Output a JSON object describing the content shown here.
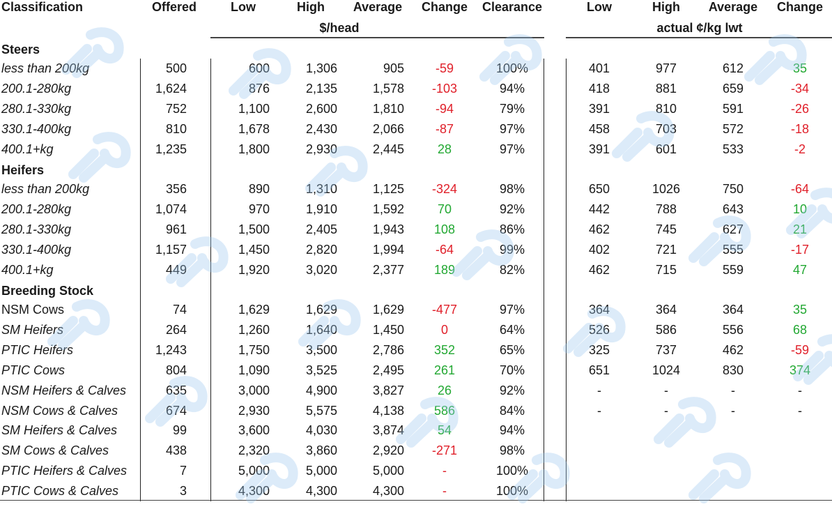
{
  "headers": {
    "classification": "Classification",
    "offered": "Offered",
    "low": "Low",
    "high": "High",
    "average": "Average",
    "change": "Change",
    "clearance": "Clearance",
    "unit_head": "$/head",
    "low2": "Low",
    "high2": "High",
    "average2": "Average",
    "change2": "Change",
    "unit_kg": "actual ¢/kg lwt"
  },
  "sections": [
    {
      "title": "Steers",
      "rows": [
        {
          "label": "less than 200kg",
          "italic": true,
          "offered": "500",
          "low": "600",
          "high": "1,306",
          "avg": "905",
          "change": "-59",
          "change_dir": "neg",
          "clearance": "100%",
          "low2": "401",
          "high2": "977",
          "avg2": "612",
          "change2": "35",
          "change2_dir": "pos"
        },
        {
          "label": "200.1-280kg",
          "italic": true,
          "offered": "1,624",
          "low": "876",
          "high": "2,135",
          "avg": "1,578",
          "change": "-103",
          "change_dir": "neg",
          "clearance": "94%",
          "low2": "418",
          "high2": "881",
          "avg2": "659",
          "change2": "-34",
          "change2_dir": "neg"
        },
        {
          "label": "280.1-330kg",
          "italic": true,
          "offered": "752",
          "low": "1,100",
          "high": "2,600",
          "avg": "1,810",
          "change": "-94",
          "change_dir": "neg",
          "clearance": "79%",
          "low2": "391",
          "high2": "810",
          "avg2": "591",
          "change2": "-26",
          "change2_dir": "neg"
        },
        {
          "label": "330.1-400kg",
          "italic": true,
          "offered": "810",
          "low": "1,678",
          "high": "2,430",
          "avg": "2,066",
          "change": "-87",
          "change_dir": "neg",
          "clearance": "97%",
          "low2": "458",
          "high2": "703",
          "avg2": "572",
          "change2": "-18",
          "change2_dir": "neg"
        },
        {
          "label": "400.1+kg",
          "italic": true,
          "offered": "1,235",
          "low": "1,800",
          "high": "2,930",
          "avg": "2,445",
          "change": "28",
          "change_dir": "pos",
          "clearance": "97%",
          "low2": "391",
          "high2": "601",
          "avg2": "533",
          "change2": "-2",
          "change2_dir": "neg"
        }
      ]
    },
    {
      "title": "Heifers",
      "rows": [
        {
          "label": "less than 200kg",
          "italic": true,
          "offered": "356",
          "low": "890",
          "high": "1,310",
          "avg": "1,125",
          "change": "-324",
          "change_dir": "neg",
          "clearance": "98%",
          "low2": "650",
          "high2": "1026",
          "avg2": "750",
          "change2": "-64",
          "change2_dir": "neg"
        },
        {
          "label": "200.1-280kg",
          "italic": true,
          "offered": "1,074",
          "low": "970",
          "high": "1,910",
          "avg": "1,592",
          "change": "70",
          "change_dir": "pos",
          "clearance": "92%",
          "low2": "442",
          "high2": "788",
          "avg2": "643",
          "change2": "10",
          "change2_dir": "pos"
        },
        {
          "label": "280.1-330kg",
          "italic": true,
          "offered": "961",
          "low": "1,500",
          "high": "2,405",
          "avg": "1,943",
          "change": "108",
          "change_dir": "pos",
          "clearance": "86%",
          "low2": "462",
          "high2": "745",
          "avg2": "627",
          "change2": "21",
          "change2_dir": "pos"
        },
        {
          "label": "330.1-400kg",
          "italic": true,
          "offered": "1,157",
          "low": "1,450",
          "high": "2,820",
          "avg": "1,994",
          "change": "-64",
          "change_dir": "neg",
          "clearance": "99%",
          "low2": "402",
          "high2": "721",
          "avg2": "555",
          "change2": "-17",
          "change2_dir": "neg"
        },
        {
          "label": "400.1+kg",
          "italic": true,
          "offered": "449",
          "low": "1,920",
          "high": "3,020",
          "avg": "2,377",
          "change": "189",
          "change_dir": "pos",
          "clearance": "82%",
          "low2": "462",
          "high2": "715",
          "avg2": "559",
          "change2": "47",
          "change2_dir": "pos"
        }
      ]
    },
    {
      "title": "Breeding Stock",
      "rows": [
        {
          "label": "NSM Cows",
          "italic": false,
          "offered": "74",
          "low": "1,629",
          "high": "1,629",
          "avg": "1,629",
          "change": "-477",
          "change_dir": "neg",
          "clearance": "97%",
          "low2": "364",
          "high2": "364",
          "avg2": "364",
          "change2": "35",
          "change2_dir": "pos"
        },
        {
          "label": "SM Heifers",
          "italic": true,
          "offered": "264",
          "low": "1,260",
          "high": "1,640",
          "avg": "1,450",
          "change": "0",
          "change_dir": "neg",
          "clearance": "64%",
          "low2": "526",
          "high2": "586",
          "avg2": "556",
          "change2": "68",
          "change2_dir": "pos"
        },
        {
          "label": "PTIC Heifers",
          "italic": true,
          "offered": "1,243",
          "low": "1,750",
          "high": "3,500",
          "avg": "2,786",
          "change": "352",
          "change_dir": "pos",
          "clearance": "65%",
          "low2": "325",
          "high2": "737",
          "avg2": "462",
          "change2": "-59",
          "change2_dir": "neg"
        },
        {
          "label": "PTIC Cows",
          "italic": true,
          "offered": "804",
          "low": "1,090",
          "high": "3,525",
          "avg": "2,495",
          "change": "261",
          "change_dir": "pos",
          "clearance": "70%",
          "low2": "651",
          "high2": "1024",
          "avg2": "830",
          "change2": "374",
          "change2_dir": "pos"
        },
        {
          "label": "NSM Heifers & Calves",
          "italic": true,
          "offered": "635",
          "low": "3,000",
          "high": "4,900",
          "avg": "3,827",
          "change": "26",
          "change_dir": "pos",
          "clearance": "92%",
          "low2": "-",
          "high2": "-",
          "avg2": "-",
          "change2": "-",
          "change2_dir": "plain"
        },
        {
          "label": "NSM Cows & Calves",
          "italic": true,
          "offered": "674",
          "low": "2,930",
          "high": "5,575",
          "avg": "4,138",
          "change": "586",
          "change_dir": "pos",
          "clearance": "84%",
          "low2": "-",
          "high2": "-",
          "avg2": "-",
          "change2": "-",
          "change2_dir": "plain"
        },
        {
          "label": "SM Heifers & Calves",
          "italic": true,
          "offered": "99",
          "low": "3,600",
          "high": "4,030",
          "avg": "3,874",
          "change": "54",
          "change_dir": "pos",
          "clearance": "94%",
          "low2": "",
          "high2": "",
          "avg2": "",
          "change2": "",
          "change2_dir": "plain"
        },
        {
          "label": "SM Cows & Calves",
          "italic": true,
          "offered": "438",
          "low": "2,320",
          "high": "3,860",
          "avg": "2,920",
          "change": "-271",
          "change_dir": "neg",
          "clearance": "98%",
          "low2": "",
          "high2": "",
          "avg2": "",
          "change2": "",
          "change2_dir": "plain"
        },
        {
          "label": "PTIC Heifers & Calves",
          "italic": true,
          "offered": "7",
          "low": "5,000",
          "high": "5,000",
          "avg": "5,000",
          "change": "-",
          "change_dir": "neg",
          "clearance": "100%",
          "low2": "",
          "high2": "",
          "avg2": "",
          "change2": "",
          "change2_dir": "plain"
        },
        {
          "label": "PTIC Cows & Calves",
          "italic": true,
          "offered": "3",
          "low": "4,300",
          "high": "4,300",
          "avg": "4,300",
          "change": "-",
          "change_dir": "neg",
          "clearance": "100%",
          "low2": "",
          "high2": "",
          "avg2": "",
          "change2": "",
          "change2_dir": "plain"
        }
      ]
    }
  ]
}
